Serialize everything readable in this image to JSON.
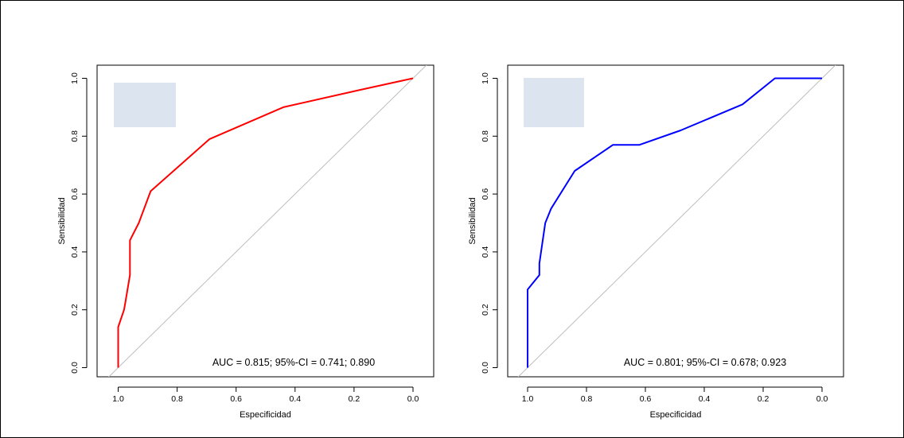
{
  "colors": {
    "legend_box": "#dbe4ef",
    "diagonal": "#bdbdbd",
    "axis": "#000000"
  },
  "chart_data": [
    {
      "type": "line",
      "title": "",
      "xlabel": "Especificidad",
      "ylabel": "Sensibilidad",
      "x_reversed": true,
      "xlim": [
        1.0,
        0.0
      ],
      "ylim": [
        0.0,
        1.0
      ],
      "xticks": [
        "1.0",
        "0.8",
        "0.6",
        "0.4",
        "0.2",
        "0.0"
      ],
      "yticks": [
        "0.0",
        "0.2",
        "0.4",
        "0.6",
        "0.8",
        "1.0"
      ],
      "grid": false,
      "legend": "top-left",
      "diagonal_reference": true,
      "auc_label": "AUC = 0.815;   95%-CI = 0.741; 0.890",
      "series": [
        {
          "color": "#ff0000",
          "x": [
            1.0,
            1.0,
            0.98,
            0.975,
            0.96,
            0.96,
            0.93,
            0.89,
            0.69,
            0.44,
            0.18,
            0.0
          ],
          "y": [
            0.0,
            0.14,
            0.2,
            0.23,
            0.32,
            0.44,
            0.5,
            0.61,
            0.79,
            0.9,
            0.96,
            1.0
          ]
        }
      ]
    },
    {
      "type": "line",
      "title": "",
      "xlabel": "Especificidad",
      "ylabel": "Sensibilidad",
      "x_reversed": true,
      "xlim": [
        1.0,
        0.0
      ],
      "ylim": [
        0.0,
        1.0
      ],
      "xticks": [
        "1.0",
        "0.8",
        "0.6",
        "0.4",
        "0.2",
        "0.0"
      ],
      "yticks": [
        "0.0",
        "0.2",
        "0.4",
        "0.6",
        "0.8",
        "1.0"
      ],
      "grid": false,
      "legend": "top-left",
      "diagonal_reference": true,
      "auc_label": "AUC = 0.801;   95%-CI = 0.678; 0.923",
      "series": [
        {
          "color": "#0000ff",
          "x": [
            1.0,
            1.0,
            0.96,
            0.96,
            0.94,
            0.92,
            0.84,
            0.71,
            0.62,
            0.48,
            0.27,
            0.16,
            0.0
          ],
          "y": [
            0.0,
            0.27,
            0.32,
            0.36,
            0.5,
            0.55,
            0.68,
            0.77,
            0.77,
            0.82,
            0.91,
            1.0,
            1.0
          ]
        }
      ]
    }
  ]
}
